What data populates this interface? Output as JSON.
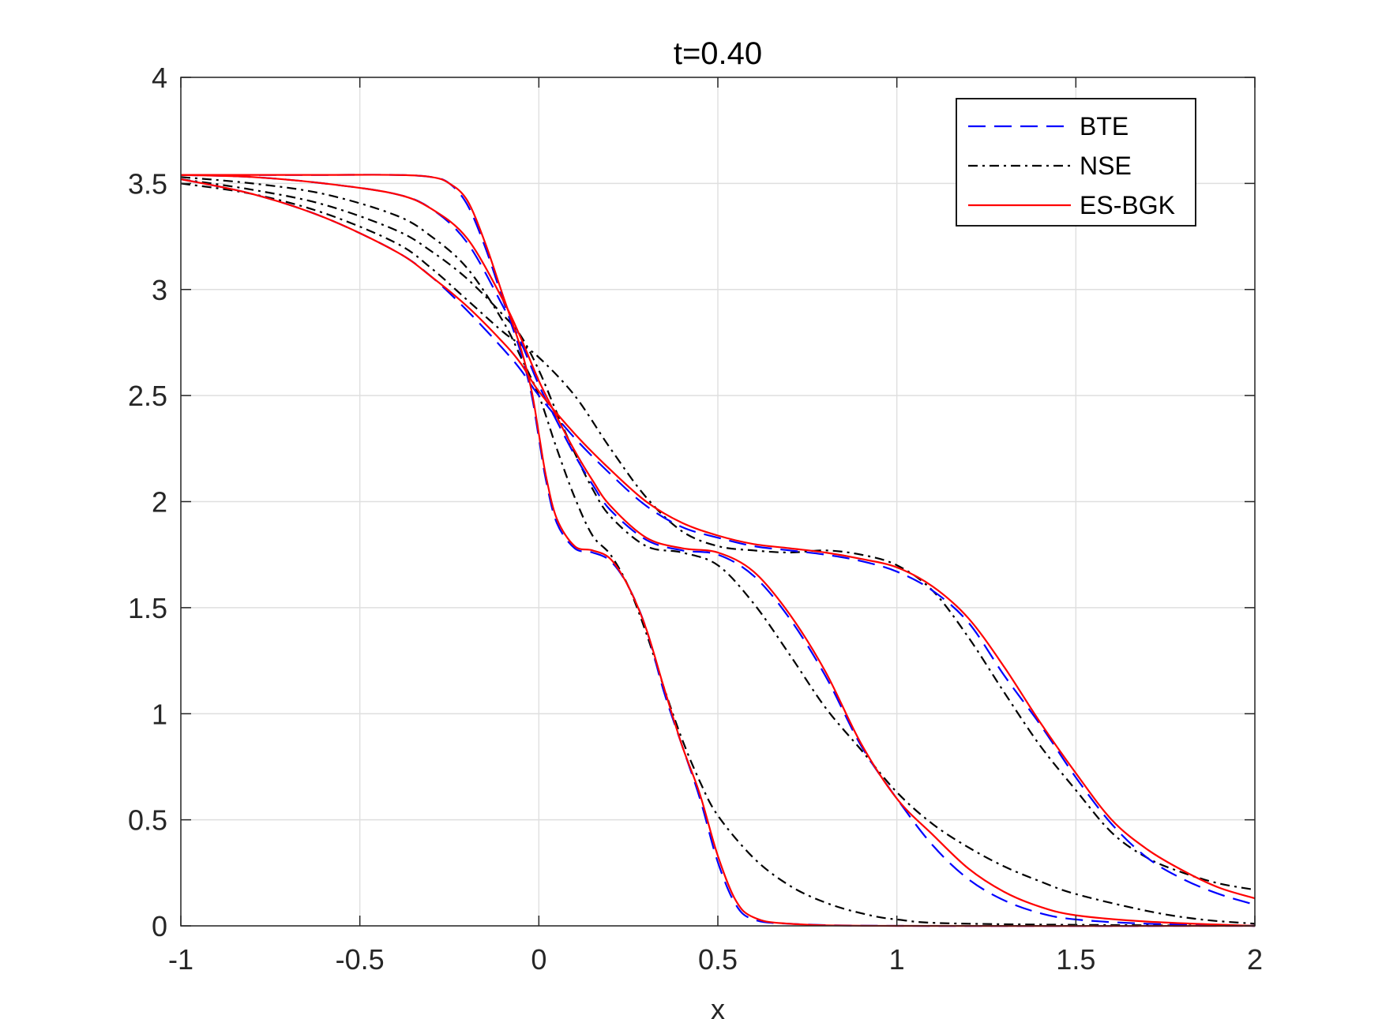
{
  "chart_data": {
    "type": "line",
    "title": "t=0.40",
    "xlabel": "x",
    "ylabel": "",
    "xlim": [
      -1,
      2
    ],
    "ylim": [
      0,
      4
    ],
    "grid": true,
    "legend_position": "top-right",
    "x_ticks": [
      "-1",
      "-0.5",
      "0",
      "0.5",
      "1",
      "1.5",
      "2"
    ],
    "y_ticks": [
      "0",
      "0.5",
      "1",
      "1.5",
      "2",
      "2.5",
      "3",
      "3.5",
      "4"
    ],
    "legend": [
      {
        "label": "BTE",
        "style": "dashed",
        "color": "#0000ff"
      },
      {
        "label": "NSE",
        "style": "dashdot",
        "color": "#000000"
      },
      {
        "label": "ES-BGK",
        "style": "solid",
        "color": "#ff0000"
      }
    ],
    "series": [
      {
        "name": "BTE",
        "group": "profile-1",
        "color": "#0000ff",
        "style": "dashed",
        "x": [
          -1,
          -0.8,
          -0.6,
          -0.4,
          -0.3,
          -0.25,
          -0.2,
          -0.15,
          -0.1,
          -0.05,
          -0.02,
          0,
          0.02,
          0.05,
          0.1,
          0.15,
          0.2,
          0.25,
          0.3,
          0.35,
          0.4,
          0.45,
          0.5,
          0.55,
          0.6,
          0.7,
          1.0,
          2.0
        ],
        "y": [
          3.54,
          3.54,
          3.54,
          3.54,
          3.53,
          3.5,
          3.4,
          3.2,
          2.95,
          2.7,
          2.5,
          2.3,
          2.1,
          1.9,
          1.78,
          1.76,
          1.72,
          1.6,
          1.4,
          1.1,
          0.85,
          0.6,
          0.3,
          0.1,
          0.03,
          0.01,
          0.0,
          0.0
        ]
      },
      {
        "name": "ES-BGK",
        "group": "profile-1",
        "color": "#ff0000",
        "style": "solid",
        "x": [
          -1,
          -0.8,
          -0.6,
          -0.4,
          -0.3,
          -0.25,
          -0.2,
          -0.15,
          -0.1,
          -0.05,
          -0.02,
          0,
          0.02,
          0.05,
          0.1,
          0.15,
          0.2,
          0.25,
          0.3,
          0.35,
          0.4,
          0.45,
          0.5,
          0.55,
          0.6,
          0.7,
          1.0,
          2.0
        ],
        "y": [
          3.54,
          3.54,
          3.54,
          3.54,
          3.53,
          3.5,
          3.42,
          3.22,
          2.97,
          2.72,
          2.52,
          2.32,
          2.12,
          1.92,
          1.79,
          1.77,
          1.73,
          1.6,
          1.4,
          1.12,
          0.85,
          0.62,
          0.33,
          0.12,
          0.04,
          0.01,
          0.0,
          0.0
        ]
      },
      {
        "name": "NSE",
        "group": "profile-1",
        "color": "#000000",
        "style": "dashdot",
        "x": [
          -1,
          -0.8,
          -0.6,
          -0.4,
          -0.3,
          -0.2,
          -0.1,
          -0.05,
          0,
          0.05,
          0.1,
          0.15,
          0.2,
          0.25,
          0.3,
          0.35,
          0.4,
          0.45,
          0.5,
          0.6,
          0.7,
          0.8,
          0.9,
          1.0,
          1.2,
          2.0
        ],
        "y": [
          3.53,
          3.5,
          3.45,
          3.35,
          3.25,
          3.1,
          2.85,
          2.68,
          2.5,
          2.25,
          2.02,
          1.84,
          1.75,
          1.6,
          1.38,
          1.12,
          0.88,
          0.68,
          0.52,
          0.32,
          0.19,
          0.11,
          0.06,
          0.03,
          0.01,
          0.0
        ]
      },
      {
        "name": "BTE",
        "group": "profile-2",
        "color": "#0000ff",
        "style": "dashed",
        "x": [
          -1,
          -0.8,
          -0.6,
          -0.4,
          -0.3,
          -0.2,
          -0.1,
          -0.05,
          0,
          0.05,
          0.1,
          0.15,
          0.2,
          0.3,
          0.4,
          0.5,
          0.6,
          0.7,
          0.8,
          0.9,
          1.0,
          1.1,
          1.2,
          1.3,
          1.4,
          1.5,
          1.7,
          2.0
        ],
        "y": [
          3.54,
          3.53,
          3.5,
          3.45,
          3.38,
          3.22,
          2.92,
          2.75,
          2.55,
          2.38,
          2.22,
          2.08,
          1.96,
          1.82,
          1.77,
          1.75,
          1.65,
          1.45,
          1.18,
          0.85,
          0.6,
          0.38,
          0.22,
          0.12,
          0.06,
          0.03,
          0.01,
          0.0
        ]
      },
      {
        "name": "ES-BGK",
        "group": "profile-2",
        "color": "#ff0000",
        "style": "solid",
        "x": [
          -1,
          -0.8,
          -0.6,
          -0.4,
          -0.3,
          -0.2,
          -0.1,
          -0.05,
          0,
          0.05,
          0.1,
          0.15,
          0.2,
          0.3,
          0.4,
          0.5,
          0.6,
          0.7,
          0.8,
          0.9,
          1.0,
          1.1,
          1.2,
          1.3,
          1.4,
          1.5,
          1.7,
          2.0
        ],
        "y": [
          3.54,
          3.53,
          3.5,
          3.45,
          3.38,
          3.24,
          2.95,
          2.77,
          2.57,
          2.4,
          2.24,
          2.1,
          1.98,
          1.83,
          1.78,
          1.76,
          1.67,
          1.47,
          1.2,
          0.86,
          0.6,
          0.43,
          0.27,
          0.16,
          0.09,
          0.05,
          0.02,
          0.0
        ]
      },
      {
        "name": "NSE",
        "group": "profile-2",
        "color": "#000000",
        "style": "dashdot",
        "x": [
          -1,
          -0.8,
          -0.6,
          -0.4,
          -0.3,
          -0.2,
          -0.1,
          -0.05,
          0,
          0.05,
          0.1,
          0.15,
          0.2,
          0.3,
          0.4,
          0.5,
          0.6,
          0.7,
          0.8,
          0.9,
          1.0,
          1.1,
          1.2,
          1.3,
          1.4,
          1.5,
          1.7,
          1.85,
          2.0
        ],
        "y": [
          3.52,
          3.47,
          3.4,
          3.28,
          3.18,
          3.05,
          2.88,
          2.78,
          2.62,
          2.42,
          2.23,
          2.06,
          1.93,
          1.79,
          1.76,
          1.7,
          1.52,
          1.28,
          1.03,
          0.83,
          0.63,
          0.48,
          0.37,
          0.28,
          0.21,
          0.15,
          0.07,
          0.03,
          0.01
        ]
      },
      {
        "name": "BTE",
        "group": "profile-3",
        "color": "#0000ff",
        "style": "dashed",
        "x": [
          -1,
          -0.8,
          -0.6,
          -0.4,
          -0.3,
          -0.2,
          -0.1,
          -0.05,
          0,
          0.1,
          0.2,
          0.3,
          0.4,
          0.5,
          0.6,
          0.7,
          0.8,
          0.9,
          1.0,
          1.1,
          1.2,
          1.3,
          1.4,
          1.5,
          1.6,
          1.7,
          1.8,
          1.9,
          2.0
        ],
        "y": [
          3.52,
          3.45,
          3.34,
          3.18,
          3.06,
          2.9,
          2.72,
          2.62,
          2.5,
          2.3,
          2.13,
          1.98,
          1.88,
          1.83,
          1.79,
          1.77,
          1.75,
          1.72,
          1.67,
          1.58,
          1.43,
          1.18,
          0.95,
          0.7,
          0.48,
          0.32,
          0.22,
          0.15,
          0.1
        ]
      },
      {
        "name": "ES-BGK",
        "group": "profile-3",
        "color": "#ff0000",
        "style": "solid",
        "x": [
          -1,
          -0.8,
          -0.6,
          -0.4,
          -0.3,
          -0.2,
          -0.1,
          -0.05,
          0,
          0.1,
          0.2,
          0.3,
          0.4,
          0.5,
          0.6,
          0.7,
          0.8,
          0.9,
          1.0,
          1.1,
          1.2,
          1.3,
          1.4,
          1.5,
          1.6,
          1.7,
          1.8,
          1.9,
          2.0
        ],
        "y": [
          3.52,
          3.45,
          3.34,
          3.18,
          3.06,
          2.92,
          2.75,
          2.65,
          2.52,
          2.32,
          2.15,
          2.0,
          1.9,
          1.84,
          1.8,
          1.78,
          1.76,
          1.73,
          1.69,
          1.6,
          1.45,
          1.22,
          0.96,
          0.72,
          0.5,
          0.36,
          0.26,
          0.18,
          0.13
        ]
      },
      {
        "name": "NSE",
        "group": "profile-3",
        "color": "#000000",
        "style": "dashdot",
        "x": [
          -1,
          -0.8,
          -0.6,
          -0.4,
          -0.3,
          -0.2,
          -0.1,
          -0.05,
          0,
          0.1,
          0.2,
          0.3,
          0.4,
          0.5,
          0.6,
          0.7,
          0.8,
          0.9,
          1.0,
          1.1,
          1.2,
          1.3,
          1.4,
          1.5,
          1.6,
          1.7,
          1.8,
          1.9,
          2.0
        ],
        "y": [
          3.5,
          3.45,
          3.36,
          3.22,
          3.1,
          2.95,
          2.8,
          2.74,
          2.68,
          2.5,
          2.25,
          2.02,
          1.86,
          1.79,
          1.77,
          1.76,
          1.77,
          1.75,
          1.7,
          1.58,
          1.36,
          1.1,
          0.85,
          0.64,
          0.44,
          0.32,
          0.25,
          0.2,
          0.17
        ]
      }
    ]
  }
}
